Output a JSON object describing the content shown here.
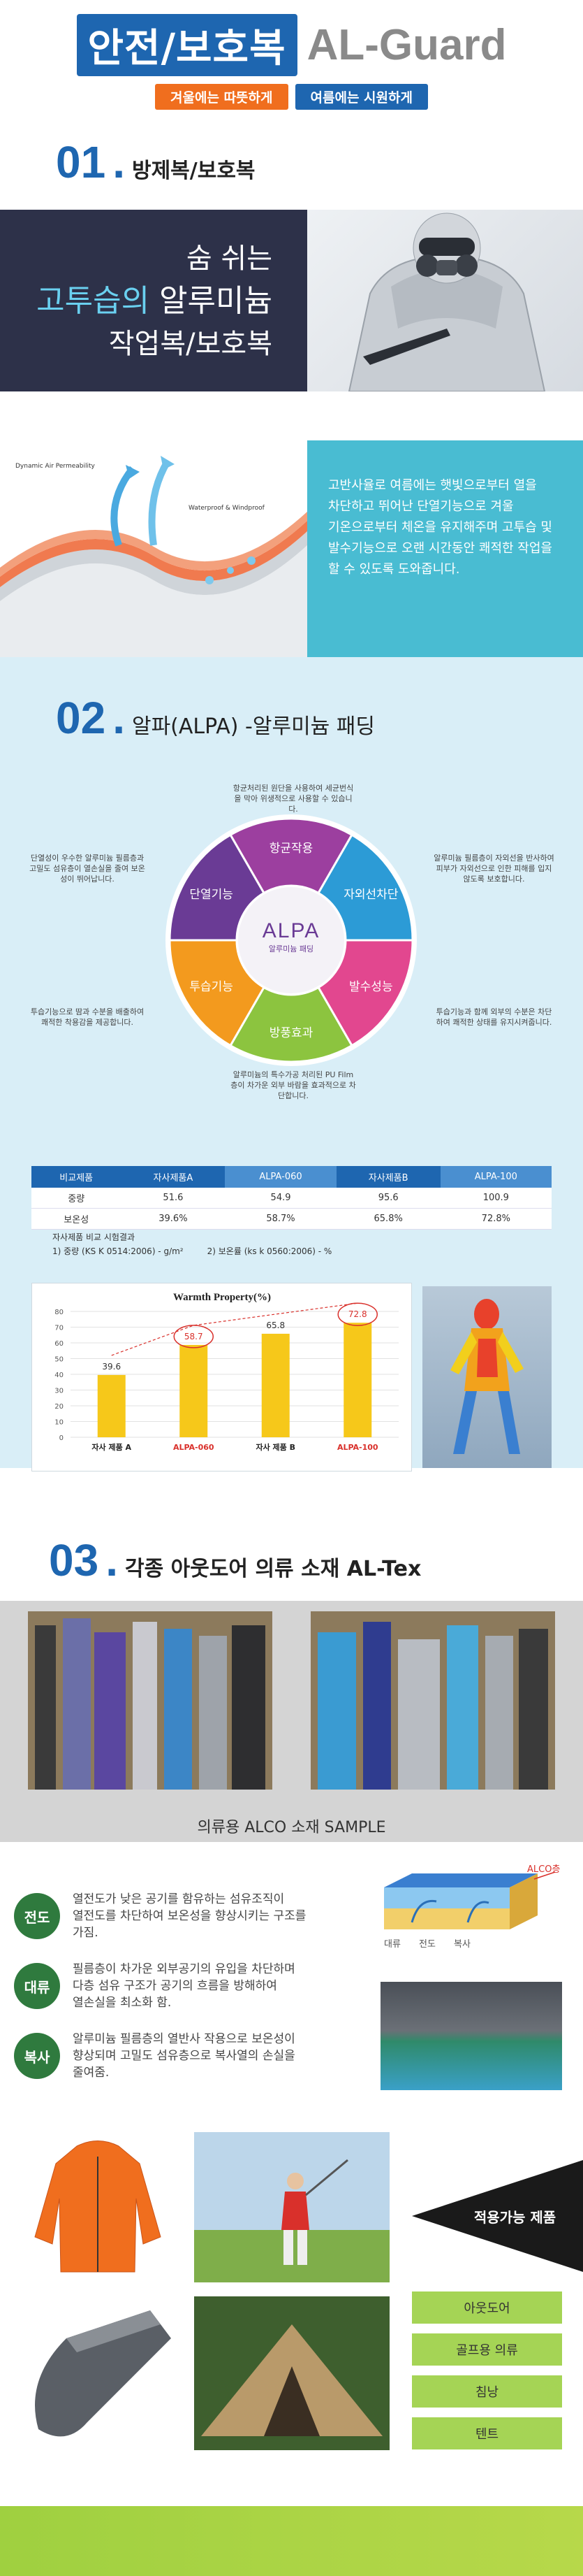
{
  "header": {
    "title_box": "안전/보호복",
    "brand": "AL-Guard",
    "tag_winter": "겨울에는 따뜻하게",
    "tag_summer": "여름에는 시원하게"
  },
  "section1": {
    "number": "01",
    "title": "방제복/보호복",
    "headline_line1": "숨 쉬는",
    "headline_line2_highlight": "고투습의",
    "headline_line2_rest": " 알루미늄",
    "headline_line3": "작업복/보호복",
    "fabric_label_left": "Dynamic Air Permeability",
    "fabric_label_right": "Waterproof & Windproof",
    "description": "고반사율로 여름에는 햇빛으로부터 열을 차단하고 뛰어난 단열기능으로 겨울 기온으로부터 체온을 유지해주며 고투습 및 발수기능으로 오랜 시간동안 쾌적한 작업을 할 수 있도록 도와줍니다."
  },
  "section2": {
    "number": "02",
    "title": "알파(ALPA) -알루미늄 패딩",
    "center_logo": "ALPA",
    "center_sub": "알루미늄 패딩",
    "segments": [
      "항균작용",
      "자외선차단",
      "발수성능",
      "방풍효과",
      "투습기능",
      "단열기능"
    ],
    "segment_colors": [
      "#9c3f9f",
      "#2c9bd6",
      "#e2478f",
      "#8cc43f",
      "#f39a1e",
      "#6a3b95"
    ],
    "notes": {
      "top": "항균처리된 원단을 사용하여 세균번식을 막아 위생적으로 사용할 수 있습니다.",
      "right_top": "알루미늄 필름층이 자외선을 반사하여 피부가 자외선으로 인한 피해를 입지 않도록 보호합니다.",
      "right_bottom": "투습기능과 함께 외부의 수분은 차단하여 쾌적한 상태를 유지시켜줍니다.",
      "bottom": "알루미늄의 특수가공 처리된 PU Film층이 차가운 외부 바람을 효과적으로 차단합니다.",
      "left_bottom": "투습기능으로 땀과 수분을 배출하여 쾌적한 착용감을 제공합니다.",
      "left_top": "단열성이 우수한 알루미늄 필름층과 고밀도 섬유층이 열손실을 줄여 보온성이 뛰어납니다."
    },
    "table": {
      "headers": [
        "비교제품",
        "자사제품A",
        "ALPA-060",
        "자사제품B",
        "ALPA-100"
      ],
      "rows": [
        [
          "중량",
          "51.6",
          "54.9",
          "95.6",
          "100.9"
        ],
        [
          "보온성",
          "39.6%",
          "58.7%",
          "65.8%",
          "72.8%"
        ]
      ],
      "note_title": "자사제품 비교 시험결과",
      "note_1": "1) 중량 (KS K 0514:2006) - g/m²",
      "note_2": "2) 보온률 (ks k 0560:2006) - %"
    }
  },
  "chart_data": {
    "type": "bar",
    "title": "Warmth Property(%)",
    "categories": [
      "자사 제품 A",
      "ALPA-060",
      "자사 제품 B",
      "ALPA-100"
    ],
    "values": [
      39.6,
      58.7,
      65.8,
      72.8
    ],
    "ylim": [
      0,
      80
    ],
    "yticks": [
      0,
      10,
      20,
      30,
      40,
      50,
      60,
      70,
      80
    ],
    "grid": true,
    "bar_color": "#f6c81a",
    "highlight_categories": [
      "ALPA-060",
      "ALPA-100"
    ],
    "highlight_color": "#d9302b"
  },
  "section3": {
    "number": "03",
    "title": "각종 아웃도어 의류 소재 AL-Tex",
    "sample_label": "의류용 ALCO 소재 SAMPLE",
    "properties": [
      {
        "circle": "전도",
        "text": "열전도가 낮은 공기를 함유하는 섬유조직이 열전도를 차단하여 보온성을 향상시키는 구조를 가짐."
      },
      {
        "circle": "대류",
        "text": "필름층이 차가운 외부공기의 유입을 차단하며 다층 섬유 구조가 공기의 흐름을 방해하여 열손실을 최소화 함."
      },
      {
        "circle": "복사",
        "text": "알루미늄 필름층의 열반사 작용으로 보온성이 향상되며 고밀도 섬유층으로 복사열의 손실을 줄여줌."
      }
    ],
    "diagram_labels": {
      "layer": "ALCO층",
      "a": "대류",
      "b": "전도",
      "c": "복사"
    },
    "applicable_title": "적용가능 제품",
    "applicable_items": [
      "아웃도어",
      "골프용 의류",
      "침낭",
      "텐트"
    ]
  }
}
